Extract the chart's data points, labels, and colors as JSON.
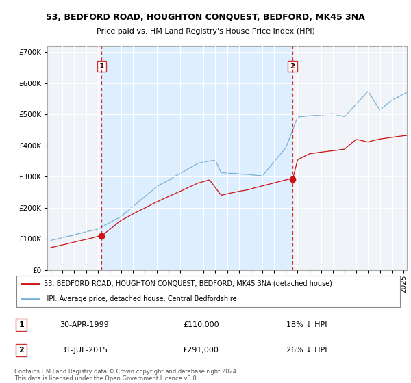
{
  "title": "53, BEDFORD ROAD, HOUGHTON CONQUEST, BEDFORD, MK45 3NA",
  "subtitle": "Price paid vs. HM Land Registry's House Price Index (HPI)",
  "legend_line1": "53, BEDFORD ROAD, HOUGHTON CONQUEST, BEDFORD, MK45 3NA (detached house)",
  "legend_line2": "HPI: Average price, detached house, Central Bedfordshire",
  "sale1_label": "1",
  "sale1_date": "30-APR-1999",
  "sale1_price": "£110,000",
  "sale1_hpi": "18% ↓ HPI",
  "sale2_label": "2",
  "sale2_date": "31-JUL-2015",
  "sale2_price": "£291,000",
  "sale2_hpi": "26% ↓ HPI",
  "footer": "Contains HM Land Registry data © Crown copyright and database right 2024.\nThis data is licensed under the Open Government Licence v3.0.",
  "hpi_color": "#7ab0d4",
  "price_color": "#cc1111",
  "sale_marker_color": "#cc1111",
  "vline_color": "#cc3333",
  "grid_color": "#cccccc",
  "bg_color": "#ffffff",
  "shade_color": "#ddeeff",
  "ylim": [
    0,
    720000
  ],
  "yticks": [
    0,
    100000,
    200000,
    300000,
    400000,
    500000,
    600000,
    700000
  ],
  "sale1_x": 1999.33,
  "sale1_y": 110000,
  "sale2_x": 2015.58,
  "sale2_y": 291000,
  "vline1_x": 1999.33,
  "vline2_x": 2015.58,
  "xlim_min": 1994.7,
  "xlim_max": 2025.3
}
